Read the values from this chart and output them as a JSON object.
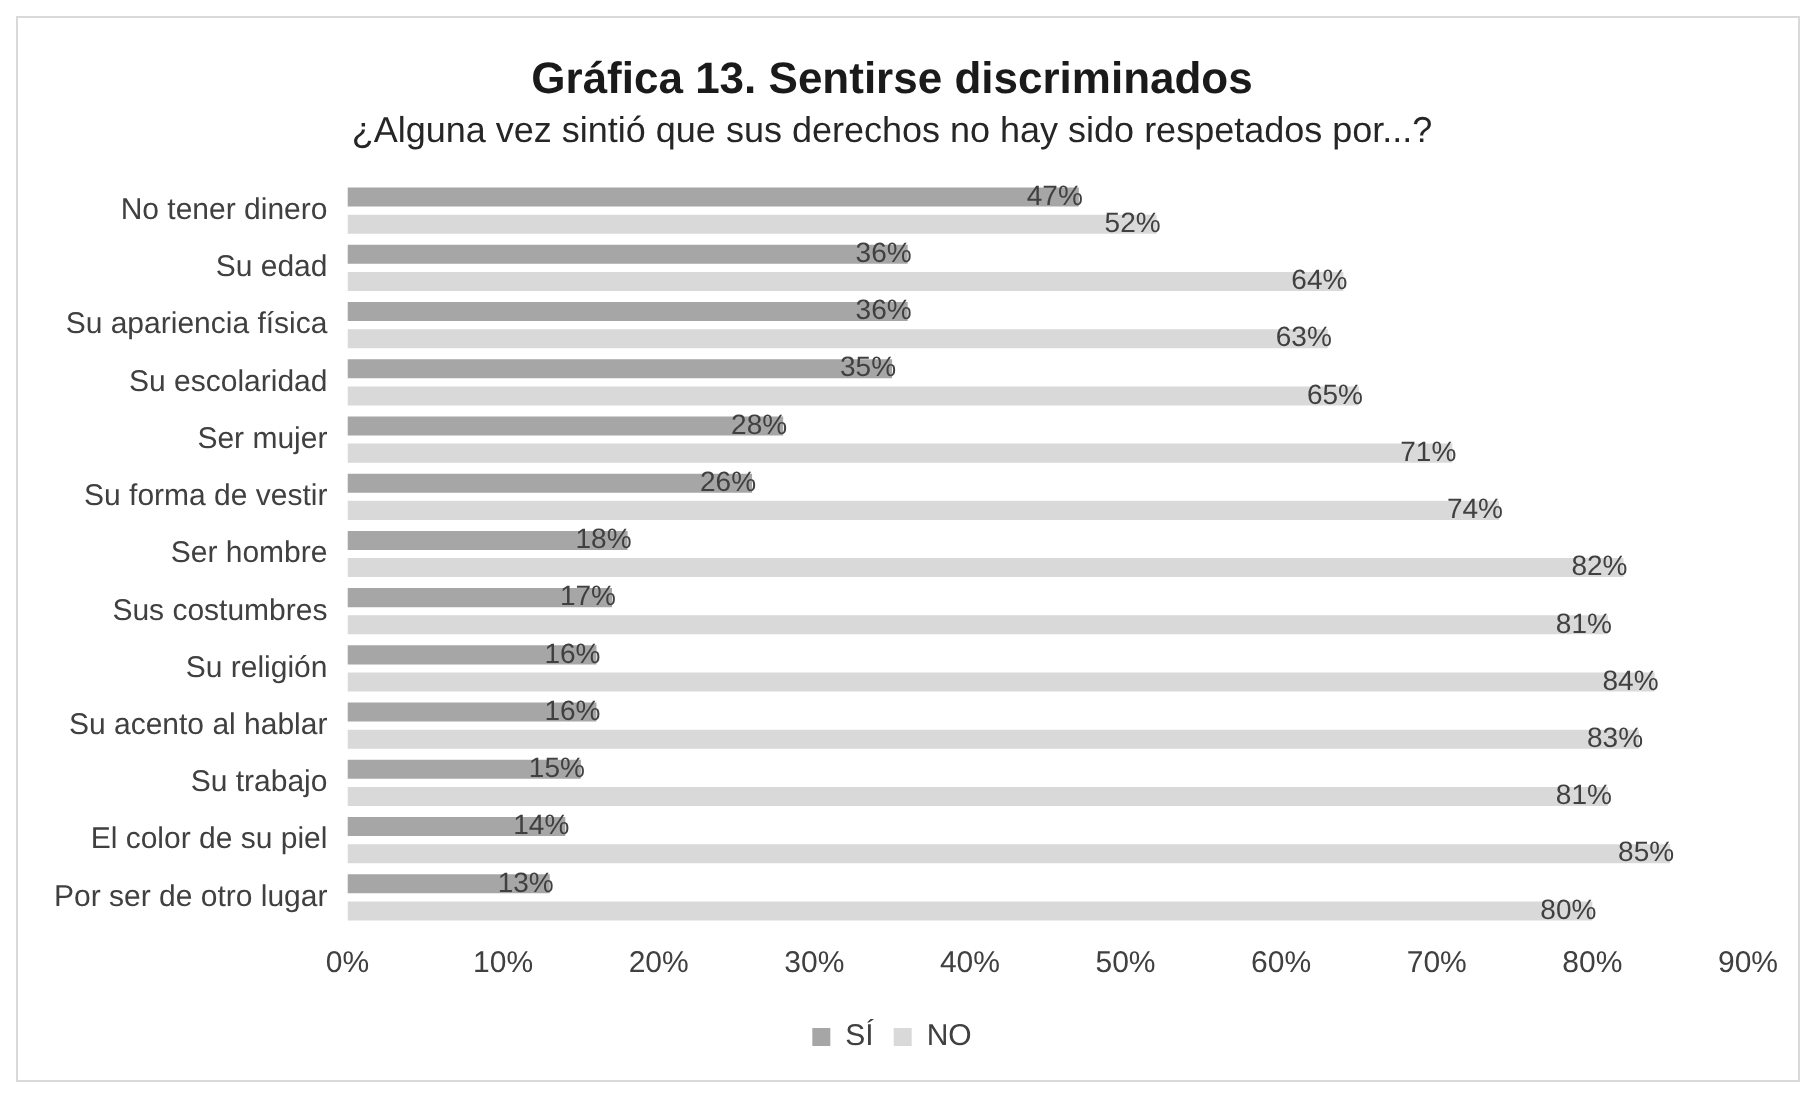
{
  "chart_data": {
    "type": "bar",
    "orientation": "horizontal",
    "title": "Gráfica 13. Sentirse discriminados",
    "subtitle": "¿Alguna vez sintió que sus derechos no hay sido respetados por...?",
    "categories": [
      "No tener dinero",
      "Su edad",
      "Su apariencia física",
      "Su escolaridad",
      "Ser mujer",
      "Su forma de vestir",
      "Ser hombre",
      "Sus costumbres",
      "Su religión",
      "Su acento al hablar",
      "Su trabajo",
      "El color de su piel",
      "Por ser de otro lugar"
    ],
    "series": [
      {
        "name": "SÍ",
        "color": "#a6a6a6",
        "values": [
          47,
          36,
          36,
          35,
          28,
          26,
          18,
          17,
          16,
          16,
          15,
          14,
          13
        ],
        "value_labels": [
          "47%",
          "36%",
          "36%",
          "35%",
          "28%",
          "26%",
          "18%",
          "17%",
          "16%",
          "16%",
          "15%",
          "14%",
          "13%"
        ]
      },
      {
        "name": "NO",
        "color": "#d9d9d9",
        "values": [
          52,
          64,
          63,
          65,
          71,
          74,
          82,
          81,
          84,
          83,
          81,
          85,
          80
        ],
        "value_labels": [
          "52%",
          "64%",
          "63%",
          "65%",
          "71%",
          "74%",
          "82%",
          "81%",
          "84%",
          "83%",
          "81%",
          "85%",
          "80%"
        ]
      }
    ],
    "xlim": [
      0,
      90
    ],
    "xticks": [
      {
        "value": 0,
        "label": "0%"
      },
      {
        "value": 10,
        "label": "10%"
      },
      {
        "value": 20,
        "label": "20%"
      },
      {
        "value": 30,
        "label": "30%"
      },
      {
        "value": 40,
        "label": "40%"
      },
      {
        "value": 50,
        "label": "50%"
      },
      {
        "value": 60,
        "label": "60%"
      },
      {
        "value": 70,
        "label": "70%"
      },
      {
        "value": 80,
        "label": "80%"
      },
      {
        "value": 90,
        "label": "90%"
      }
    ],
    "grid": false,
    "legend": "bottom"
  }
}
